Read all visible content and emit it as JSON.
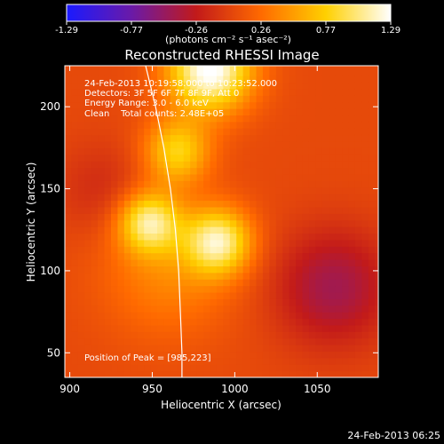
{
  "chart_data": {
    "type": "heatmap",
    "title": "Reconstructed RHESSI Image",
    "xlabel": "Heliocentric X (arcsec)",
    "ylabel": "Heliocentric Y (arcsec)",
    "xlim": [
      897,
      1087
    ],
    "ylim": [
      35,
      225
    ],
    "x_ticks": [
      900,
      950,
      1000,
      1050
    ],
    "y_ticks": [
      50,
      100,
      150,
      200
    ],
    "colorbar": {
      "ticks": [
        "-1.29",
        "-0.77",
        "-0.26",
        "0.26",
        "0.77",
        "1.29"
      ],
      "range": [
        -1.29,
        1.29
      ],
      "units_label": "(photons cm⁻² s⁻¹ asec⁻²)"
    },
    "annotations": [
      "24-Feb-2013 10:19:58.000 to 10:23:52.000",
      "Detectors: 3F 5F 6F 7F 8F 9F, Att 0",
      "Energy Range: 3.0 - 6.0 keV",
      "Clean    Total counts: 2.48E+05"
    ],
    "peak_label": "Position of Peak = [985,223]",
    "peak_position": [
      985,
      223
    ],
    "limb_curve": [
      [
        946,
        225
      ],
      [
        952,
        200
      ],
      [
        957,
        175
      ],
      [
        961,
        150
      ],
      [
        964,
        125
      ],
      [
        966,
        100
      ],
      [
        967,
        75
      ],
      [
        968,
        50
      ],
      [
        968,
        35
      ]
    ],
    "emission_sources": [
      {
        "x": 985,
        "y": 223,
        "sigma": 18,
        "value": 1.29
      },
      {
        "x": 965,
        "y": 173,
        "sigma": 14,
        "value": 0.75
      },
      {
        "x": 948,
        "y": 130,
        "sigma": 13,
        "value": 0.95
      },
      {
        "x": 990,
        "y": 118,
        "sigma": 14,
        "value": 1.0
      },
      {
        "x": 960,
        "y": 100,
        "sigma": 28,
        "value": 0.35
      },
      {
        "x": 920,
        "y": 150,
        "sigma": 20,
        "value": -0.2
      },
      {
        "x": 1060,
        "y": 90,
        "sigma": 25,
        "value": -0.5
      }
    ],
    "colors": [
      "#1a1aff",
      "#6a1aa8",
      "#c21a1a",
      "#ff6a00",
      "#ffd000",
      "#ffffff"
    ]
  },
  "footer_timestamp": "24-Feb-2013 06:25"
}
